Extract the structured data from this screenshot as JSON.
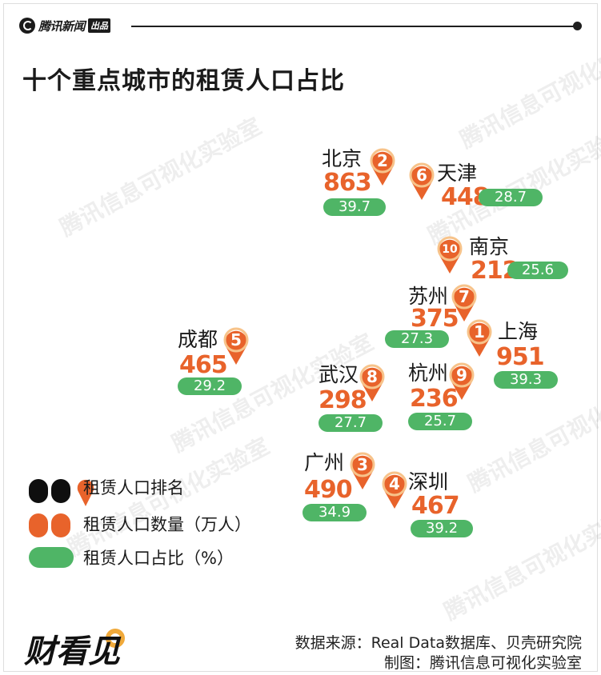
{
  "header": {
    "logo_text": "腾讯新闻",
    "logo_badge": "出品"
  },
  "chart_data": {
    "type": "map-markers",
    "title": "十个重点城市的租赁人口占比",
    "series": [
      {
        "name": "租赁人口排名"
      },
      {
        "name": "租赁人口数量（万人）"
      },
      {
        "name": "租赁人口占比（%）"
      }
    ],
    "cities": [
      {
        "name": "北京",
        "rank": 2,
        "count": 863,
        "share": 39.7
      },
      {
        "name": "天津",
        "rank": 6,
        "count": 448,
        "share": 28.7
      },
      {
        "name": "南京",
        "rank": 10,
        "count": 212,
        "share": 25.6
      },
      {
        "name": "苏州",
        "rank": 7,
        "count": 375,
        "share": 27.3
      },
      {
        "name": "上海",
        "rank": 1,
        "count": 951,
        "share": 39.3
      },
      {
        "name": "成都",
        "rank": 5,
        "count": 465,
        "share": 29.2
      },
      {
        "name": "武汉",
        "rank": 8,
        "count": 298,
        "share": 27.7
      },
      {
        "name": "杭州",
        "rank": 9,
        "count": 236,
        "share": 25.7
      },
      {
        "name": "广州",
        "rank": 3,
        "count": 490,
        "share": 34.9
      },
      {
        "name": "深圳",
        "rank": 4,
        "count": 467,
        "share": 39.2
      }
    ]
  },
  "legend": {
    "rank_label": "租赁人口排名",
    "count_label": "租赁人口数量（万人）",
    "share_label": "租赁人口占比（%）"
  },
  "watermark": "腾讯信息可视化实验室",
  "footer": {
    "brand": "财看见",
    "source": "数据来源：Real Data数据库、贝壳研究院",
    "credit": "制图：腾讯信息可视化实验室"
  },
  "colors": {
    "orange": "#e8632b",
    "green": "#4fb566",
    "pin_ring": "#f7c38a",
    "dark": "#1f1f1f"
  }
}
